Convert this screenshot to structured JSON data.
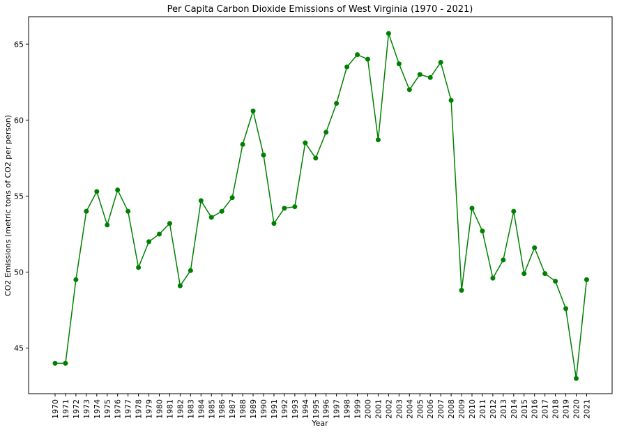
{
  "chart_data": {
    "type": "line",
    "title": "Per Capita Carbon Dioxide Emissions of West Virginia (1970 - 2021)",
    "xlabel": "Year",
    "ylabel": "CO2 Emissions (metric tons of CO2 per person)",
    "x": [
      "1970",
      "1971",
      "1972",
      "1973",
      "1974",
      "1975",
      "1976",
      "1977",
      "1978",
      "1979",
      "1980",
      "1981",
      "1982",
      "1983",
      "1984",
      "1985",
      "1986",
      "1987",
      "1988",
      "1989",
      "1990",
      "1991",
      "1992",
      "1993",
      "1994",
      "1995",
      "1996",
      "1997",
      "1998",
      "1999",
      "2000",
      "2001",
      "2002",
      "2003",
      "2004",
      "2005",
      "2006",
      "2007",
      "2008",
      "2009",
      "2010",
      "2011",
      "2012",
      "2013",
      "2014",
      "2015",
      "2016",
      "2017",
      "2018",
      "2019",
      "2020",
      "2021"
    ],
    "series": [
      {
        "color": "#008000",
        "marker": "circle",
        "values": [
          44.0,
          44.0,
          49.5,
          54.0,
          55.3,
          53.1,
          55.4,
          54.0,
          50.3,
          52.0,
          52.5,
          53.2,
          49.1,
          50.1,
          54.7,
          53.6,
          54.0,
          54.9,
          58.4,
          60.6,
          57.7,
          53.2,
          54.2,
          54.3,
          58.5,
          57.5,
          59.2,
          61.1,
          63.5,
          64.3,
          64.0,
          58.7,
          65.7,
          63.7,
          62.0,
          63.0,
          62.8,
          63.8,
          61.3,
          48.8,
          54.2,
          52.7,
          49.6,
          50.8,
          54.0,
          49.9,
          51.6,
          49.9,
          49.4,
          47.6,
          43.0,
          49.5
        ]
      }
    ],
    "yticks": [
      45,
      50,
      55,
      60,
      65
    ],
    "ylim": [
      42.0,
      66.8
    ],
    "grid": false,
    "legend": "none"
  }
}
